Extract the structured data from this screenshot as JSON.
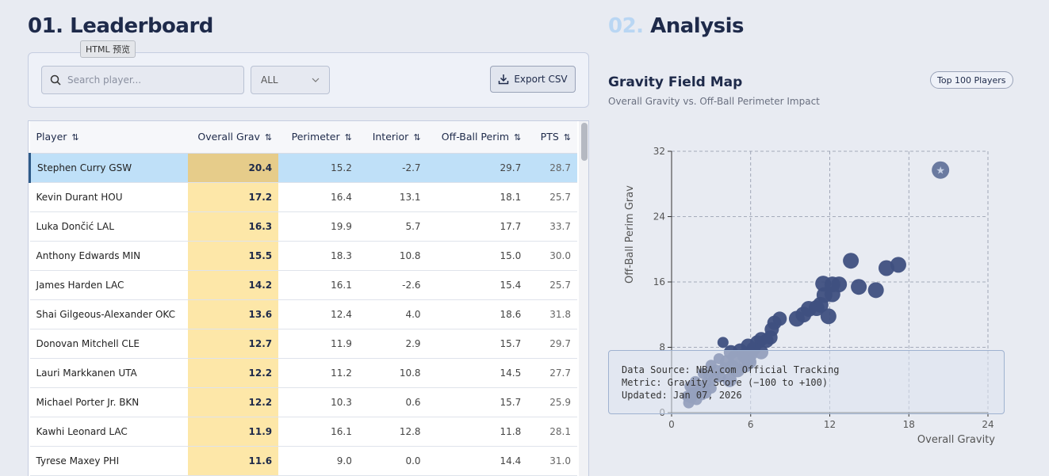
{
  "sections": {
    "left": {
      "num": "01.",
      "title": "Leaderboard"
    },
    "right": {
      "num": "02.",
      "title": "Analysis"
    }
  },
  "tooltip": "HTML 预览",
  "toolbar": {
    "search_placeholder": "Search player...",
    "filter_value": "ALL",
    "export_label": "Export CSV"
  },
  "table": {
    "columns": [
      "Player",
      "Overall Grav",
      "Perimeter",
      "Interior",
      "Off-Ball Perim",
      "PTS"
    ],
    "rows": [
      {
        "player": "Stephen Curry GSW",
        "grav": "20.4",
        "perim": "15.2",
        "interior": "-2.7",
        "offball": "29.7",
        "pts": "28.7"
      },
      {
        "player": "Kevin Durant HOU",
        "grav": "17.2",
        "perim": "16.4",
        "interior": "13.1",
        "offball": "18.1",
        "pts": "25.7"
      },
      {
        "player": "Luka Dončić LAL",
        "grav": "16.3",
        "perim": "19.9",
        "interior": "5.7",
        "offball": "17.7",
        "pts": "33.7"
      },
      {
        "player": "Anthony Edwards MIN",
        "grav": "15.5",
        "perim": "18.3",
        "interior": "10.8",
        "offball": "15.0",
        "pts": "30.0"
      },
      {
        "player": "James Harden LAC",
        "grav": "14.2",
        "perim": "16.1",
        "interior": "-2.6",
        "offball": "15.4",
        "pts": "25.7"
      },
      {
        "player": "Shai Gilgeous-Alexander OKC",
        "grav": "13.6",
        "perim": "12.4",
        "interior": "4.0",
        "offball": "18.6",
        "pts": "31.8"
      },
      {
        "player": "Donovan Mitchell CLE",
        "grav": "12.7",
        "perim": "11.9",
        "interior": "2.9",
        "offball": "15.7",
        "pts": "29.7"
      },
      {
        "player": "Lauri Markkanen UTA",
        "grav": "12.2",
        "perim": "11.2",
        "interior": "10.8",
        "offball": "14.5",
        "pts": "27.7"
      },
      {
        "player": "Michael Porter Jr. BKN",
        "grav": "12.2",
        "perim": "10.3",
        "interior": "0.6",
        "offball": "15.7",
        "pts": "25.9"
      },
      {
        "player": "Kawhi Leonard LAC",
        "grav": "11.9",
        "perim": "16.1",
        "interior": "12.8",
        "offball": "11.8",
        "pts": "28.1"
      },
      {
        "player": "Tyrese Maxey PHI",
        "grav": "11.6",
        "perim": "9.0",
        "interior": "0.0",
        "offball": "14.4",
        "pts": "31.0"
      }
    ]
  },
  "chart_header": {
    "title": "Gravity Field Map",
    "subtitle": "Overall Gravity vs. Off-Ball Perimeter Impact",
    "badge": "Top 100 Players"
  },
  "info": {
    "line1": "Data Source: NBA.com Official Tracking",
    "line2": "Metric: Gravity Score (−100 to +100)",
    "line3": "Updated: Jan 07, 2026"
  },
  "colors": {
    "dot": "#3f5080",
    "highlight": "#fde7a8",
    "selected": "#bfe0f8"
  },
  "chart_data": {
    "type": "scatter",
    "xlabel": "Overall Gravity",
    "ylabel": "Off-Ball Perim Grav",
    "xlim": [
      0,
      24
    ],
    "ylim": [
      0,
      32
    ],
    "xticks": [
      0,
      6,
      12,
      18,
      24
    ],
    "yticks": [
      0,
      8,
      16,
      24,
      32
    ],
    "highlight": {
      "x": 20.4,
      "y": 29.7,
      "label": "Stephen Curry"
    },
    "points": [
      [
        17.2,
        18.1
      ],
      [
        16.3,
        17.7
      ],
      [
        15.5,
        15.0
      ],
      [
        14.2,
        15.4
      ],
      [
        13.6,
        18.6
      ],
      [
        12.7,
        15.7
      ],
      [
        12.2,
        14.5
      ],
      [
        12.2,
        15.7
      ],
      [
        11.9,
        11.8
      ],
      [
        11.6,
        14.4
      ],
      [
        11.5,
        15.8
      ],
      [
        11.3,
        13.2
      ],
      [
        11.0,
        12.8
      ],
      [
        10.4,
        12.7
      ],
      [
        10.0,
        12.0
      ],
      [
        9.5,
        11.5
      ],
      [
        8.2,
        11.5
      ],
      [
        7.8,
        11.0
      ],
      [
        7.6,
        10.2
      ],
      [
        7.5,
        9.2
      ],
      [
        7.2,
        8.8
      ],
      [
        6.8,
        9.0
      ],
      [
        6.5,
        8.6
      ],
      [
        6.2,
        7.8
      ],
      [
        5.8,
        8.2
      ],
      [
        5.5,
        7.0
      ],
      [
        5.8,
        6.5
      ],
      [
        5.2,
        7.6
      ],
      [
        4.8,
        6.8
      ],
      [
        4.5,
        7.4
      ],
      [
        4.2,
        6.2
      ],
      [
        4.0,
        5.5
      ],
      [
        3.9,
        8.6
      ],
      [
        3.6,
        6.6
      ],
      [
        3.4,
        5.2
      ],
      [
        3.2,
        4.2
      ],
      [
        3.0,
        5.8
      ],
      [
        2.8,
        4.6
      ],
      [
        2.6,
        3.6
      ],
      [
        2.4,
        4.8
      ],
      [
        2.2,
        3.0
      ],
      [
        2.0,
        2.6
      ],
      [
        1.8,
        3.8
      ],
      [
        1.6,
        2.4
      ],
      [
        1.4,
        3.2
      ],
      [
        1.2,
        2.0
      ],
      [
        1.3,
        1.2
      ],
      [
        2.3,
        2.2
      ],
      [
        3.0,
        3.0
      ],
      [
        4.4,
        4.0
      ],
      [
        5.0,
        5.2
      ],
      [
        5.6,
        5.8
      ],
      [
        6.0,
        7.2
      ],
      [
        4.6,
        5.6
      ],
      [
        3.7,
        4.4
      ],
      [
        2.6,
        2.4
      ],
      [
        1.9,
        1.6
      ],
      [
        1.5,
        1.8
      ],
      [
        6.8,
        7.4
      ],
      [
        5.9,
        6.2
      ]
    ]
  }
}
